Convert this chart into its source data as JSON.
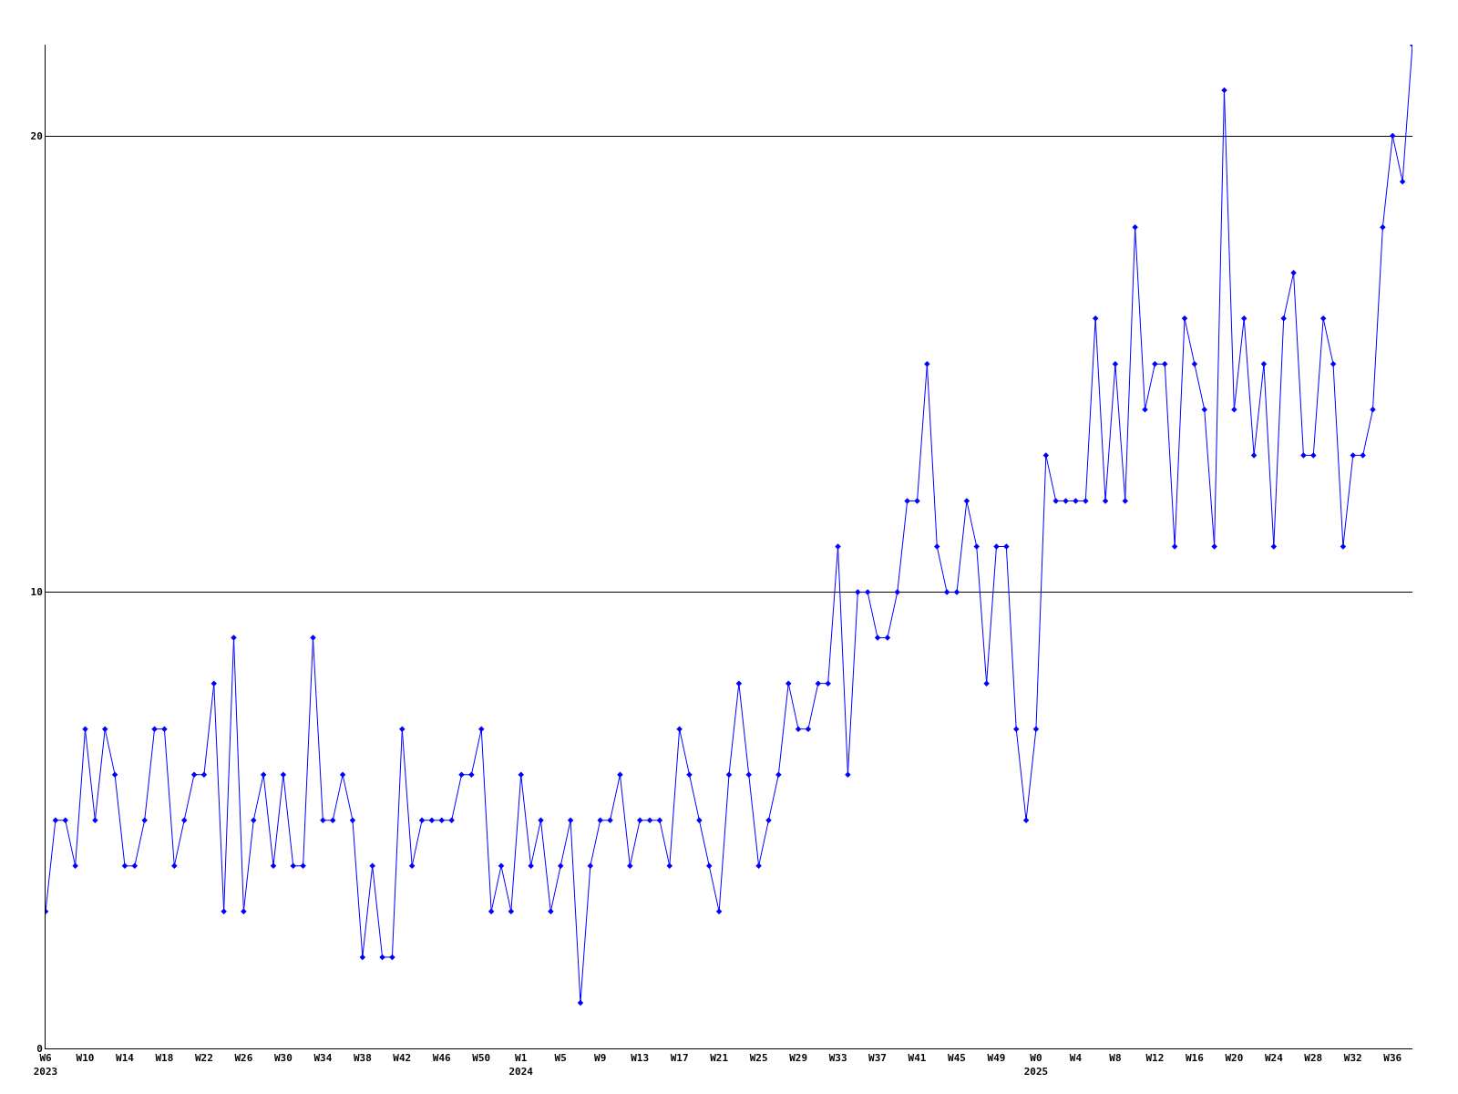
{
  "chart_data": {
    "type": "line",
    "categories": [
      "W6\n2023",
      null,
      null,
      null,
      "W10",
      null,
      null,
      null,
      "W14",
      null,
      null,
      null,
      "W18",
      null,
      null,
      null,
      "W22",
      null,
      null,
      null,
      "W26",
      null,
      null,
      null,
      "W30",
      null,
      null,
      null,
      "W34",
      null,
      null,
      null,
      "W38",
      null,
      null,
      null,
      "W42",
      null,
      null,
      null,
      "W46",
      null,
      null,
      null,
      "W50",
      null,
      null,
      null,
      "W1\n2024",
      null,
      null,
      null,
      "W5",
      null,
      null,
      null,
      "W9",
      null,
      null,
      null,
      "W13",
      null,
      null,
      null,
      "W17",
      null,
      null,
      null,
      "W21",
      null,
      null,
      null,
      "W25",
      null,
      null,
      null,
      "W29",
      null,
      null,
      null,
      "W33",
      null,
      null,
      null,
      "W37",
      null,
      null,
      null,
      "W41",
      null,
      null,
      null,
      "W45",
      null,
      null,
      null,
      "W49",
      null,
      null,
      null,
      "W0\n2025",
      null,
      null,
      null,
      "W4",
      null,
      null,
      null,
      "W8",
      null,
      null,
      null,
      "W12",
      null,
      null,
      null,
      "W16",
      null,
      null,
      null,
      "W20",
      null,
      null,
      null,
      "W24",
      null,
      null,
      null,
      "W28",
      null,
      null,
      null,
      "W32",
      null,
      null,
      null,
      "W36",
      null,
      null
    ],
    "values": [
      3,
      5,
      5,
      4,
      7,
      5,
      7,
      6,
      4,
      4,
      5,
      7,
      7,
      4,
      5,
      6,
      6,
      8,
      3,
      9,
      3,
      5,
      6,
      4,
      6,
      4,
      4,
      9,
      5,
      5,
      6,
      5,
      2,
      4,
      2,
      2,
      7,
      4,
      5,
      5,
      5,
      5,
      6,
      6,
      7,
      3,
      4,
      3,
      6,
      4,
      5,
      3,
      4,
      5,
      1,
      4,
      5,
      5,
      6,
      4,
      5,
      5,
      5,
      4,
      7,
      6,
      5,
      4,
      3,
      6,
      8,
      6,
      4,
      5,
      6,
      8,
      7,
      7,
      8,
      8,
      11,
      6,
      10,
      10,
      9,
      9,
      10,
      12,
      12,
      15,
      11,
      10,
      10,
      12,
      11,
      8,
      11,
      11,
      7,
      5,
      7,
      13,
      12,
      12,
      12,
      12,
      16,
      12,
      15,
      12,
      18,
      14,
      15,
      15,
      11,
      16,
      15,
      14,
      11,
      21,
      14,
      16,
      13,
      15,
      11,
      16,
      17,
      13,
      13,
      16,
      15,
      11,
      13,
      13,
      14,
      18,
      20,
      19,
      22
    ],
    "color": "#0000ff",
    "ylim": [
      0,
      22
    ],
    "yticks": [
      0,
      10,
      20
    ],
    "grid": "y",
    "marker": "diamond",
    "line_style": "solid"
  }
}
